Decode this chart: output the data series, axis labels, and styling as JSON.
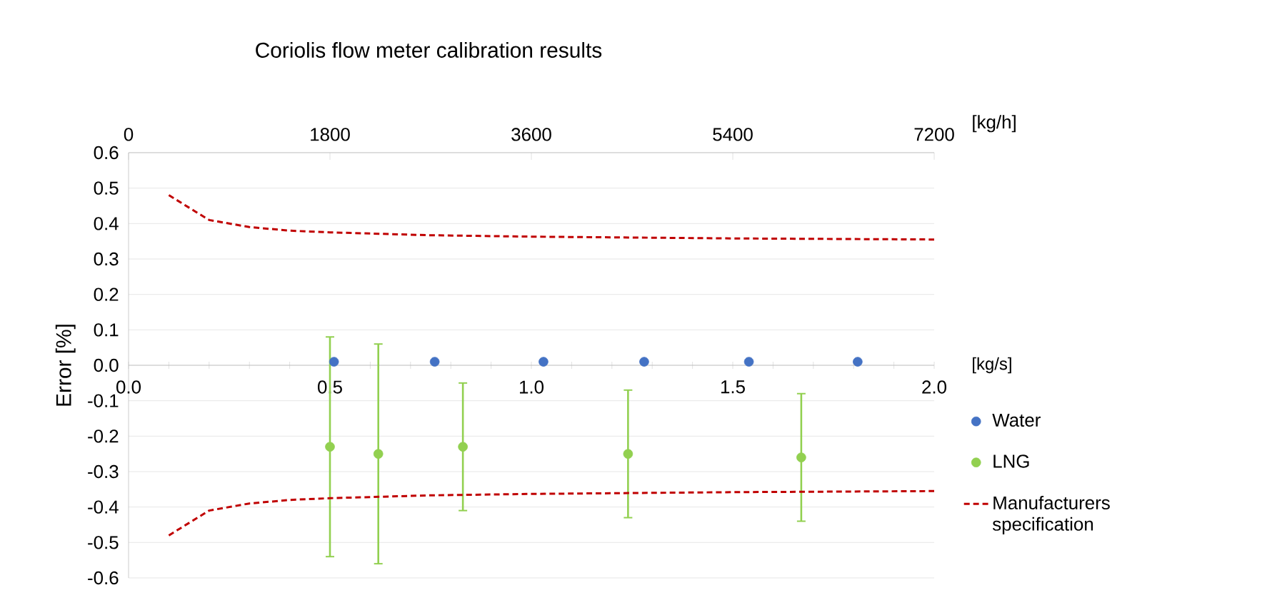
{
  "chart_data": {
    "type": "scatter",
    "title": "Coriolis flow meter calibration results",
    "xlabel": "[kg/s]",
    "x2label": "[kg/h]",
    "ylabel": "Error [%]",
    "xlim": [
      0,
      2
    ],
    "xticks": [
      {
        "value": 0,
        "label": "0.0"
      },
      {
        "value": 0.1,
        "label": null
      },
      {
        "value": 0.2,
        "label": null
      },
      {
        "value": 0.3,
        "label": null
      },
      {
        "value": 0.4,
        "label": null
      },
      0.5,
      {
        "value": 0.6,
        "label": null
      },
      {
        "value": 0.7,
        "label": null
      },
      {
        "value": 0.8,
        "label": null
      },
      {
        "value": 0.9,
        "label": null
      },
      {
        "value": 1,
        "label": "1.0"
      },
      {
        "value": 1.1,
        "label": null
      },
      {
        "value": 1.2,
        "label": null
      },
      {
        "value": 1.3,
        "label": null
      },
      {
        "value": 1.4,
        "label": null
      },
      1.5,
      {
        "value": 1.6,
        "label": null
      },
      {
        "value": 1.7,
        "label": null
      },
      {
        "value": 1.8,
        "label": null
      },
      {
        "value": 1.9,
        "label": null
      },
      {
        "value": 2,
        "label": "2.0"
      }
    ],
    "x2lim": [
      0,
      7200
    ],
    "x2ticks": [
      0,
      1800,
      3600,
      5400,
      7200
    ],
    "ylim": [
      -0.6,
      0.6
    ],
    "yticks": [
      -0.6,
      -0.5,
      -0.4,
      -0.3,
      -0.2,
      -0.1,
      {
        "value": 0,
        "label": "0.0"
      },
      0.1,
      0.2,
      0.3,
      0.4,
      0.5,
      0.6
    ],
    "grid": "y",
    "legend": "right",
    "marker": "circle",
    "series": [
      {
        "name": "Water",
        "color": "#4472c4",
        "x": [
          0.51,
          0.76,
          1.03,
          1.28,
          1.54,
          1.81
        ],
        "values": [
          0.01,
          0.01,
          0.01,
          0.01,
          0.01,
          0.01
        ]
      },
      {
        "name": "LNG",
        "color": "#92d050",
        "x": [
          0.5,
          0.62,
          0.83,
          1.24,
          1.67
        ],
        "values": [
          -0.23,
          -0.25,
          -0.23,
          -0.25,
          -0.26
        ],
        "errors": [
          [
            -0.54,
            0.08
          ],
          [
            -0.56,
            0.06
          ],
          [
            -0.41,
            -0.05
          ],
          [
            -0.43,
            -0.07
          ],
          [
            -0.44,
            -0.08
          ]
        ]
      },
      {
        "name": "Manufacturers specification",
        "type": "line",
        "line_style": "dashed",
        "marker": "none",
        "color": "#c00000",
        "x": [
          0.1,
          0.2,
          0.3,
          0.4,
          0.5,
          0.75,
          1.0,
          1.5,
          2.0
        ],
        "values": [
          0.48,
          0.41,
          0.39,
          0.38,
          0.375,
          0.367,
          0.363,
          0.358,
          0.355
        ]
      },
      {
        "type": "line",
        "line_style": "dashed",
        "marker": "none",
        "color": "#c00000",
        "x": [
          0.1,
          0.2,
          0.3,
          0.4,
          0.5,
          0.75,
          1.0,
          1.5,
          2.0
        ],
        "values": [
          -0.48,
          -0.41,
          -0.39,
          -0.38,
          -0.375,
          -0.367,
          -0.363,
          -0.358,
          -0.355
        ]
      }
    ]
  }
}
